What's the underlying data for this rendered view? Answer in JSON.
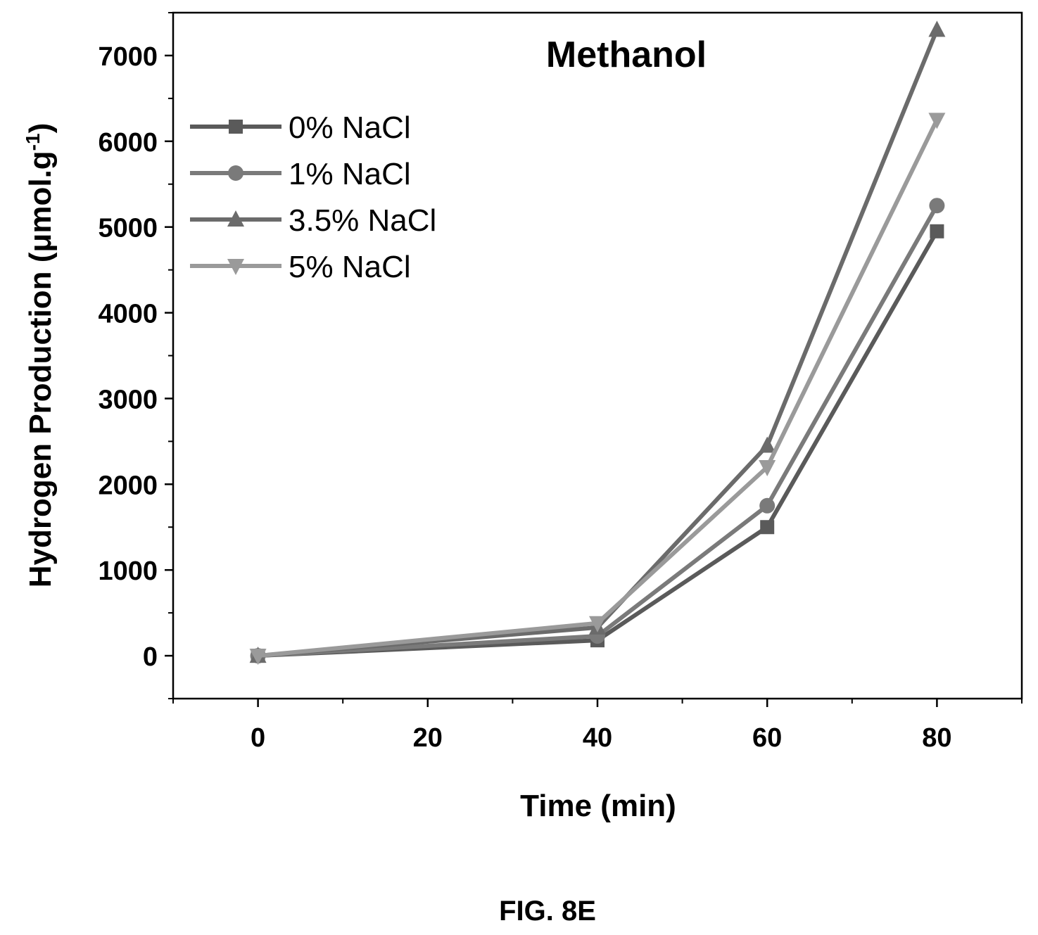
{
  "chart_data": {
    "type": "line",
    "title": "Methanol",
    "xlabel": "Time (min)",
    "ylabel_main": "Hydrogen Production (",
    "ylabel_mu": "μ",
    "ylabel_unit": "mol.g",
    "ylabel_exp": "-1",
    "ylabel_close": ")",
    "xlim": [
      -10,
      90
    ],
    "ylim": [
      -500,
      7500
    ],
    "x_ticks": [
      0,
      20,
      40,
      60,
      80
    ],
    "y_ticks": [
      0,
      1000,
      2000,
      3000,
      4000,
      5000,
      6000,
      7000
    ],
    "x": [
      0,
      40,
      60,
      80
    ],
    "series": [
      {
        "name": "0% NaCl",
        "values": [
          0,
          180,
          1500,
          4950
        ],
        "color": "#5a5a5a",
        "marker": "square"
      },
      {
        "name": "1% NaCl",
        "values": [
          0,
          230,
          1750,
          5250
        ],
        "color": "#7a7a7a",
        "marker": "circle"
      },
      {
        "name": "3.5% NaCl",
        "values": [
          0,
          330,
          2450,
          7300
        ],
        "color": "#6b6b6b",
        "marker": "triangle-up"
      },
      {
        "name": "5% NaCl",
        "values": [
          0,
          380,
          2200,
          6250
        ],
        "color": "#9a9a9a",
        "marker": "triangle-down"
      }
    ],
    "legend_position": "top-left",
    "grid": false
  },
  "figure_label": "FIG. 8E"
}
